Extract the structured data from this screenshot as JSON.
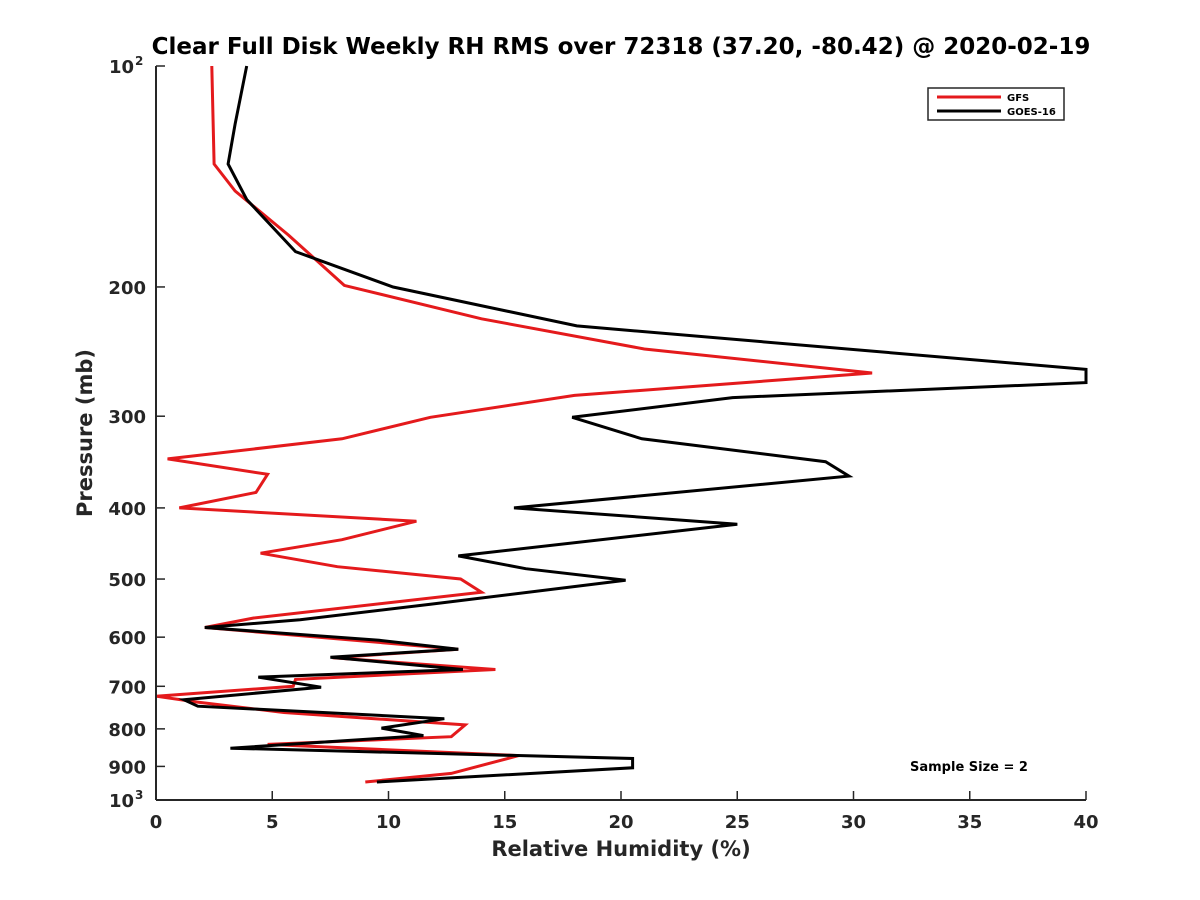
{
  "chart_data": {
    "type": "line",
    "title": "Clear Full Disk Weekly RH RMS over 72318 (37.20, -80.42) @ 2020-02-19",
    "xlabel": "Relative Humidity (%)",
    "ylabel": "Pressure (mb)",
    "xlim": [
      0,
      40
    ],
    "ylim": [
      100,
      1000
    ],
    "yscale": "log",
    "y_reversed": true,
    "x_ticks": [
      "0",
      "5",
      "10",
      "15",
      "20",
      "25",
      "30",
      "35",
      "40"
    ],
    "y_ticks": [
      {
        "value": 100,
        "base": "10",
        "exp": "2"
      },
      {
        "value": 200,
        "base": "200",
        "exp": ""
      },
      {
        "value": 300,
        "base": "300",
        "exp": ""
      },
      {
        "value": 400,
        "base": "400",
        "exp": ""
      },
      {
        "value": 500,
        "base": "500",
        "exp": ""
      },
      {
        "value": 600,
        "base": "600",
        "exp": ""
      },
      {
        "value": 700,
        "base": "700",
        "exp": ""
      },
      {
        "value": 800,
        "base": "800",
        "exp": ""
      },
      {
        "value": 900,
        "base": "900",
        "exp": ""
      },
      {
        "value": 1000,
        "base": "10",
        "exp": "3"
      }
    ],
    "grid": false,
    "legend_position": "top-right",
    "annotation": "Sample Size = 2",
    "series": [
      {
        "name": "GFS",
        "color": "#e41a1c",
        "points": [
          [
            2.4,
            100
          ],
          [
            2.5,
            136
          ],
          [
            3.4,
            148
          ],
          [
            5.7,
            170
          ],
          [
            8.1,
            199
          ],
          [
            14.0,
            221
          ],
          [
            21.0,
            243
          ],
          [
            30.8,
            262
          ],
          [
            18.0,
            281
          ],
          [
            11.8,
            301
          ],
          [
            8.0,
            322
          ],
          [
            0.5,
            343
          ],
          [
            4.8,
            360
          ],
          [
            4.3,
            381
          ],
          [
            1.0,
            400
          ],
          [
            11.2,
            417
          ],
          [
            8.0,
            442
          ],
          [
            4.5,
            461
          ],
          [
            7.8,
            481
          ],
          [
            13.1,
            500
          ],
          [
            14.0,
            521
          ],
          [
            4.2,
            565
          ],
          [
            2.1,
            582
          ],
          [
            13.0,
            623
          ],
          [
            7.6,
            640
          ],
          [
            14.6,
            664
          ],
          [
            6.0,
            685
          ],
          [
            5.9,
            700
          ],
          [
            0.0,
            722
          ],
          [
            1.7,
            735
          ],
          [
            5.5,
            760
          ],
          [
            13.3,
            790
          ],
          [
            12.7,
            820
          ],
          [
            4.8,
            840
          ],
          [
            15.6,
            870
          ],
          [
            12.7,
            920
          ],
          [
            9.0,
            945
          ]
        ]
      },
      {
        "name": "GOES-16",
        "color": "#000000",
        "points": [
          [
            3.9,
            100
          ],
          [
            3.4,
            120
          ],
          [
            3.1,
            136
          ],
          [
            3.9,
            152
          ],
          [
            6.0,
            179
          ],
          [
            10.2,
            200
          ],
          [
            18.1,
            226
          ],
          [
            40.0,
            259
          ],
          [
            40.0,
            270
          ],
          [
            24.8,
            283
          ],
          [
            17.9,
            301
          ],
          [
            20.9,
            322
          ],
          [
            28.8,
            346
          ],
          [
            29.8,
            362
          ],
          [
            15.4,
            400
          ],
          [
            25.0,
            421
          ],
          [
            13.0,
            465
          ],
          [
            15.9,
            484
          ],
          [
            20.2,
            502
          ],
          [
            11.8,
            541
          ],
          [
            6.2,
            568
          ],
          [
            2.1,
            582
          ],
          [
            9.6,
            606
          ],
          [
            13.0,
            623
          ],
          [
            7.5,
            639
          ],
          [
            13.2,
            664
          ],
          [
            4.4,
            680
          ],
          [
            7.1,
            702
          ],
          [
            1.2,
            730
          ],
          [
            1.8,
            745
          ],
          [
            12.4,
            775
          ],
          [
            9.7,
            798
          ],
          [
            11.5,
            817
          ],
          [
            3.2,
            850
          ],
          [
            20.5,
            878
          ],
          [
            20.5,
            904
          ],
          [
            9.5,
            945
          ]
        ]
      }
    ]
  }
}
